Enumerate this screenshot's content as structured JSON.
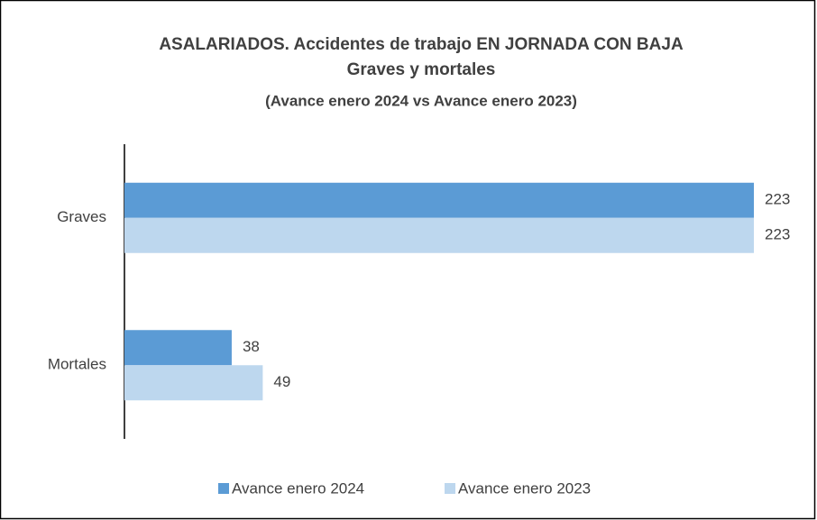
{
  "chart_data": {
    "type": "bar",
    "orientation": "horizontal",
    "title": "ASALARIADOS. Accidentes de trabajo EN JORNADA CON BAJA",
    "subtitle": "Graves y mortales",
    "annotation": "(Avance enero 2024 vs Avance enero 2023)",
    "categories": [
      "Graves",
      "Mortales"
    ],
    "series": [
      {
        "name": "Avance enero 2024",
        "color": "#5b9bd5",
        "values": [
          223,
          38
        ]
      },
      {
        "name": "Avance enero 2023",
        "color": "#bdd7ee",
        "values": [
          223,
          49
        ]
      }
    ],
    "xlim": [
      0,
      223
    ],
    "legend": "bottom"
  }
}
